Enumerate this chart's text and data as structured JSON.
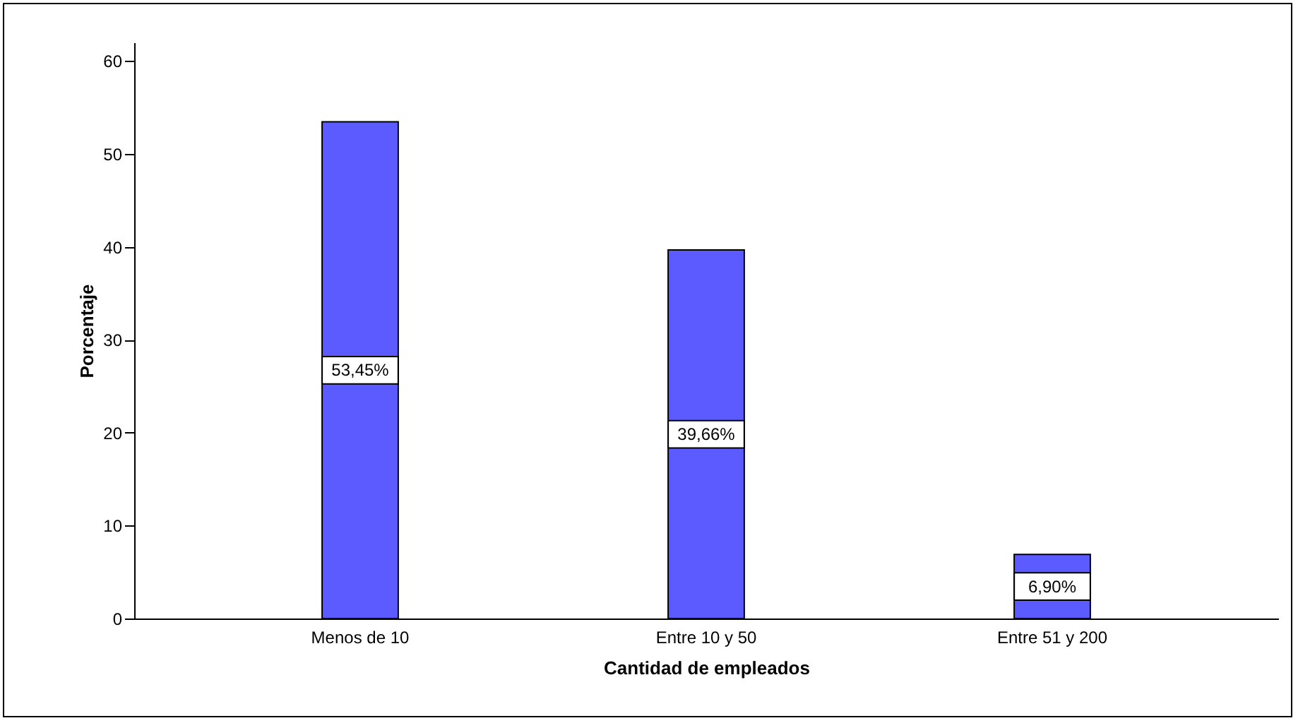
{
  "chart_data": {
    "type": "bar",
    "xlabel": "Cantidad de empleados",
    "ylabel": "Porcentaje",
    "categories": [
      "Menos de 10",
      "Entre 10 y 50",
      "Entre 51 y 200"
    ],
    "values": [
      53.45,
      39.66,
      6.9
    ],
    "value_labels": [
      "53,45%",
      "39,66%",
      "6,90%"
    ],
    "color": "#5b5bff",
    "ylim": [
      0,
      62
    ],
    "yticks": [
      0,
      10,
      20,
      30,
      40,
      50,
      60
    ],
    "grid": false
  }
}
